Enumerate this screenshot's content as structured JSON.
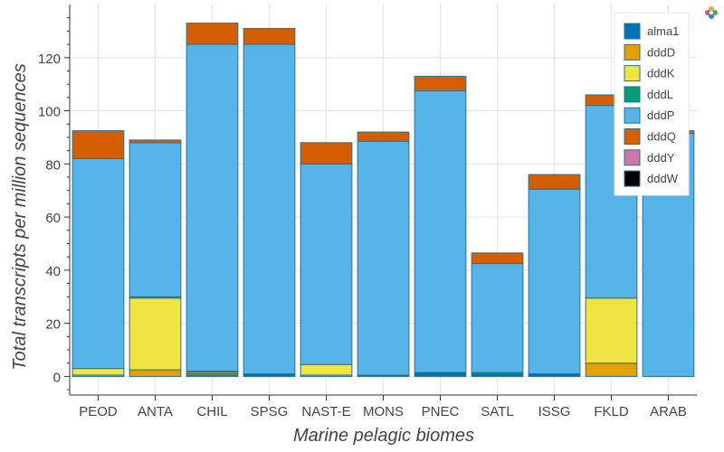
{
  "chart_data": {
    "type": "bar",
    "stacked": true,
    "title": "",
    "xlabel": "Marine pelagic biomes",
    "ylabel": "Total transcripts per million sequences",
    "ylim": [
      -7,
      140
    ],
    "yticks": [
      0,
      20,
      40,
      60,
      80,
      100,
      120
    ],
    "grid": true,
    "legend_position": "top-right",
    "categories": [
      "PEOD",
      "ANTA",
      "CHIL",
      "SPSG",
      "NAST-E",
      "MONS",
      "PNEC",
      "SATL",
      "ISSG",
      "FKLD",
      "ARAB"
    ],
    "series": [
      {
        "name": "alma1",
        "color": "#0072B2",
        "values": [
          0,
          0,
          0.5,
          1.0,
          0,
          0.5,
          1.5,
          1.0,
          1.0,
          0,
          0
        ]
      },
      {
        "name": "dddD",
        "color": "#E69F00",
        "values": [
          0.5,
          2.5,
          0.5,
          0,
          0.5,
          0,
          0,
          0,
          0,
          5.0,
          0
        ]
      },
      {
        "name": "dddK",
        "color": "#F0E442",
        "values": [
          2.5,
          27.0,
          0.5,
          0,
          4.0,
          0,
          0,
          0,
          0,
          24.5,
          0
        ]
      },
      {
        "name": "dddL",
        "color": "#009E73",
        "values": [
          0,
          0.5,
          0.5,
          0,
          0,
          0,
          0,
          0.5,
          0,
          0,
          0
        ]
      },
      {
        "name": "dddP",
        "color": "#56B4E9",
        "values": [
          79.0,
          58.0,
          123.0,
          124.0,
          75.5,
          88.0,
          106.0,
          41.0,
          69.5,
          72.5,
          91.5
        ]
      },
      {
        "name": "dddQ",
        "color": "#D55E00",
        "values": [
          10.5,
          1.0,
          8.0,
          6.0,
          8.0,
          3.5,
          5.5,
          4.0,
          5.5,
          4.0,
          1.0
        ]
      },
      {
        "name": "dddY",
        "color": "#CC79A7",
        "values": [
          0,
          0,
          0,
          0,
          0,
          0,
          0,
          0,
          0,
          0,
          0
        ]
      },
      {
        "name": "dddW",
        "color": "#000000",
        "values": [
          0,
          0,
          0,
          0,
          0,
          0,
          0,
          0,
          0,
          0,
          0
        ]
      }
    ]
  }
}
